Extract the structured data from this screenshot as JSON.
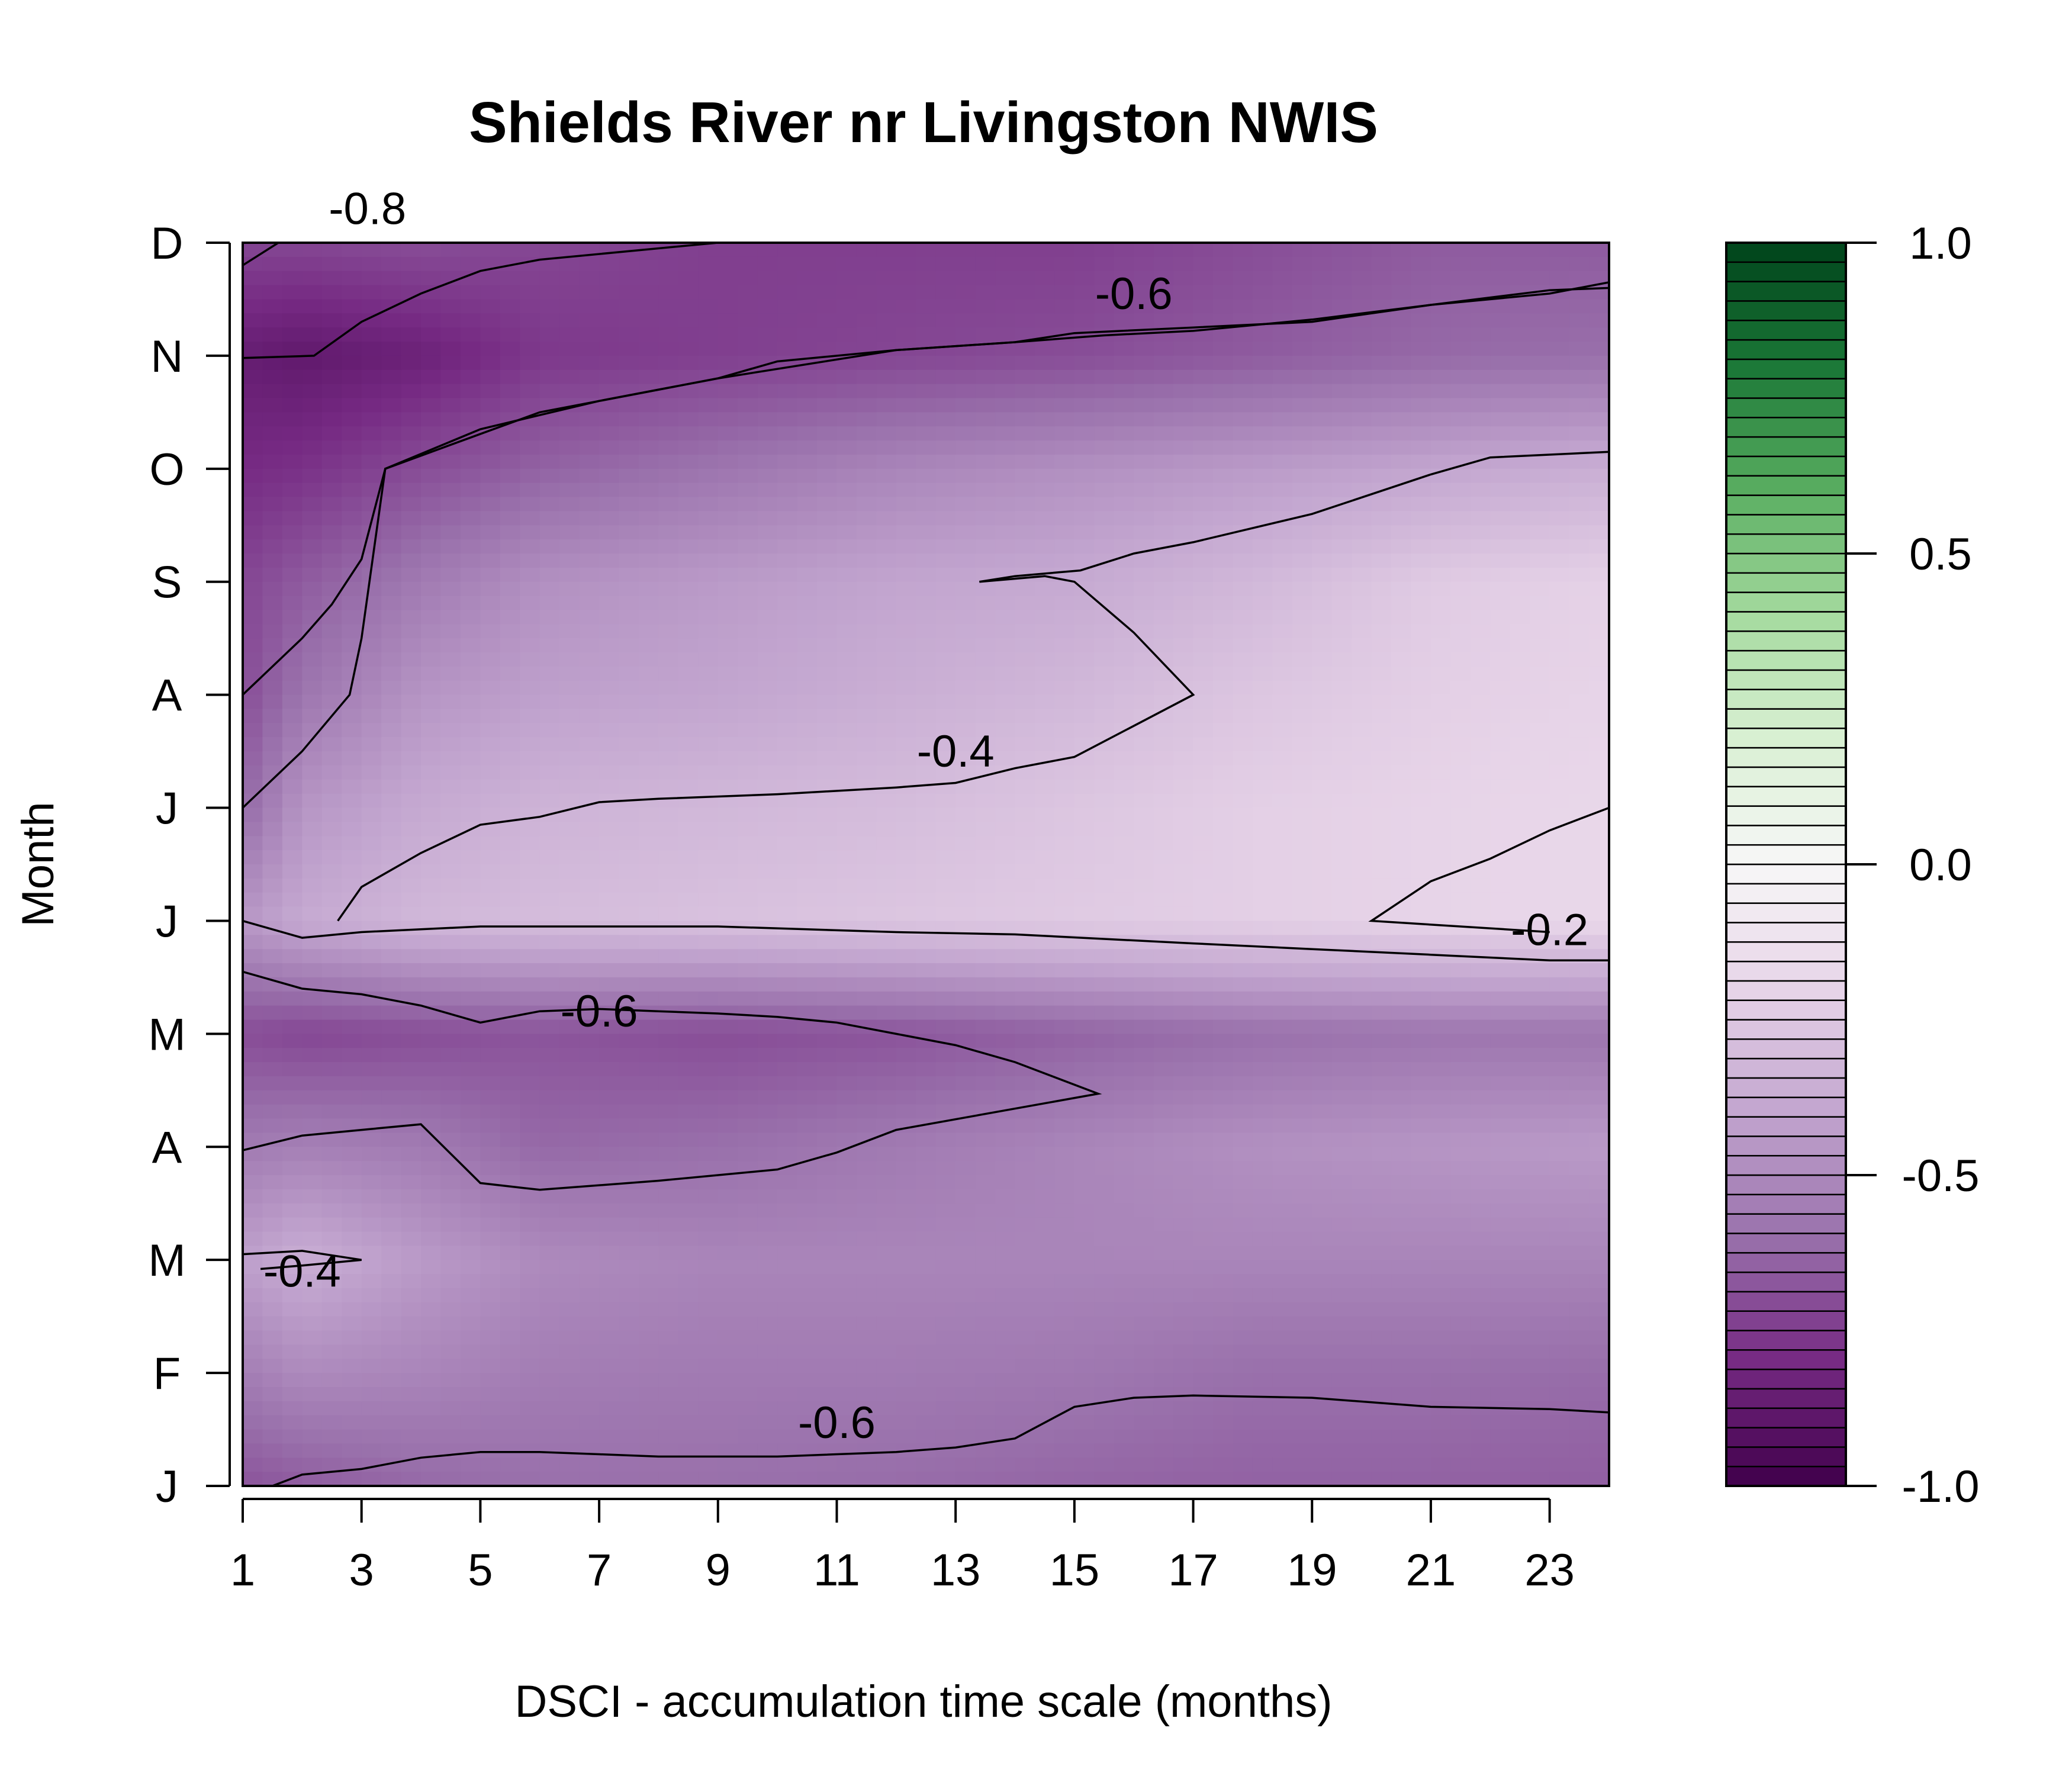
{
  "chart_data": {
    "type": "heatmap",
    "title": "Shields River nr Livingston NWIS",
    "xlabel": "DSCI - accumulation time scale (months)",
    "ylabel": "Month",
    "xlim": [
      1,
      24
    ],
    "x_ticks": [
      1,
      3,
      5,
      7,
      9,
      11,
      13,
      15,
      17,
      19,
      21,
      23
    ],
    "y_ticks": [
      "J",
      "F",
      "M",
      "A",
      "M",
      "J",
      "J",
      "A",
      "S",
      "O",
      "N",
      "D"
    ],
    "colorbar": {
      "range": [
        -1.0,
        1.0
      ],
      "tick_values": [
        1.0,
        0.5,
        0.0,
        -0.5,
        -1.0
      ],
      "tick_labels": [
        "1.0",
        "0.5",
        "0.0",
        "-0.5",
        "-1.0"
      ],
      "low_color": "#40004b",
      "mid_color": "#f7f7f7",
      "high_color": "#00441b"
    },
    "x": [
      1,
      2,
      4,
      6,
      9,
      12,
      15,
      18,
      21,
      24
    ],
    "rows": [
      {
        "month": "J",
        "values": [
          -0.68,
          -0.66,
          -0.62,
          -0.6,
          -0.6,
          -0.61,
          -0.63,
          -0.64,
          -0.64,
          -0.65
        ]
      },
      {
        "month": "F",
        "values": [
          -0.55,
          -0.5,
          -0.52,
          -0.55,
          -0.56,
          -0.56,
          -0.57,
          -0.6,
          -0.6,
          -0.61
        ]
      },
      {
        "month": "M",
        "values": [
          -0.42,
          -0.36,
          -0.44,
          -0.5,
          -0.52,
          -0.52,
          -0.52,
          -0.52,
          -0.52,
          -0.52
        ]
      },
      {
        "month": "A",
        "values": [
          -0.56,
          -0.54,
          -0.56,
          -0.62,
          -0.6,
          -0.56,
          -0.52,
          -0.48,
          -0.46,
          -0.44
        ]
      },
      {
        "month": "M",
        "values": [
          -0.7,
          -0.72,
          -0.7,
          -0.68,
          -0.7,
          -0.68,
          -0.64,
          -0.6,
          -0.58,
          -0.58
        ]
      },
      {
        "month": "J",
        "values": [
          -0.45,
          -0.38,
          -0.32,
          -0.3,
          -0.28,
          -0.26,
          -0.24,
          -0.22,
          -0.2,
          -0.18
        ]
      },
      {
        "month": "J",
        "values": [
          -0.62,
          -0.46,
          -0.38,
          -0.34,
          -0.32,
          -0.3,
          -0.26,
          -0.22,
          -0.2,
          -0.18
        ]
      },
      {
        "month": "A",
        "values": [
          -0.7,
          -0.58,
          -0.46,
          -0.42,
          -0.4,
          -0.36,
          -0.32,
          -0.26,
          -0.22,
          -0.2
        ]
      },
      {
        "month": "S",
        "values": [
          -0.72,
          -0.66,
          -0.56,
          -0.48,
          -0.44,
          -0.4,
          -0.38,
          -0.32,
          -0.24,
          -0.21
        ]
      },
      {
        "month": "O",
        "values": [
          -0.8,
          -0.78,
          -0.7,
          -0.64,
          -0.58,
          -0.52,
          -0.48,
          -0.44,
          -0.4,
          -0.36
        ]
      },
      {
        "month": "N",
        "values": [
          -0.86,
          -0.88,
          -0.84,
          -0.76,
          -0.74,
          -0.72,
          -0.7,
          -0.66,
          -0.62,
          -0.6
        ]
      },
      {
        "month": "D",
        "values": [
          -0.72,
          -0.72,
          -0.7,
          -0.72,
          -0.74,
          -0.74,
          -0.74,
          -0.7,
          -0.66,
          -0.66
        ]
      }
    ],
    "contours": [
      {
        "label": "-0.8",
        "points": [
          [
            1,
            10.8
          ],
          [
            2.5,
            11.3
          ],
          [
            4,
            11.3
          ],
          [
            6,
            11.2
          ],
          [
            7,
            11.2
          ],
          [
            8,
            11.15
          ],
          [
            9,
            11.0
          ],
          [
            6,
            10.85
          ],
          [
            5,
            10.75
          ],
          [
            4,
            10.55
          ],
          [
            3,
            10.3
          ],
          [
            2.2,
            10.0
          ],
          [
            1,
            9.98
          ]
        ]
      },
      {
        "label": "-0.6",
        "points": [
          [
            1,
            7.0
          ],
          [
            1.5,
            7.25
          ],
          [
            2,
            7.5
          ],
          [
            2.5,
            7.8
          ],
          [
            3,
            8.2
          ],
          [
            3.4,
            9.0
          ],
          [
            5,
            9.35
          ],
          [
            7,
            9.6
          ],
          [
            9,
            9.8
          ],
          [
            10,
            9.95
          ],
          [
            12,
            10.05
          ],
          [
            14,
            10.12
          ],
          [
            15.5,
            10.18
          ],
          [
            17,
            10.22
          ],
          [
            19,
            10.32
          ],
          [
            21,
            10.45
          ],
          [
            23,
            10.58
          ],
          [
            24,
            10.6
          ]
        ]
      },
      {
        "label": "-0.6",
        "points": [
          [
            1,
            4.55
          ],
          [
            2,
            4.4
          ],
          [
            3,
            4.35
          ],
          [
            4,
            4.25
          ],
          [
            5,
            4.1
          ],
          [
            6,
            4.2
          ],
          [
            7,
            4.22
          ],
          [
            8,
            4.2
          ],
          [
            9,
            4.18
          ],
          [
            10,
            4.15
          ],
          [
            11,
            4.1
          ],
          [
            12,
            4.0
          ],
          [
            13,
            3.9
          ],
          [
            14,
            3.75
          ],
          [
            15.4,
            3.47
          ],
          [
            12,
            3.15
          ],
          [
            11,
            2.95
          ],
          [
            10,
            2.8
          ],
          [
            8,
            2.7
          ],
          [
            6,
            2.62
          ],
          [
            5,
            2.68
          ],
          [
            4,
            3.2
          ],
          [
            3,
            3.15
          ],
          [
            2,
            3.1
          ],
          [
            1,
            2.97
          ]
        ]
      },
      {
        "label": "-0.6",
        "points": [
          [
            1.5,
            0
          ],
          [
            2,
            0.1
          ],
          [
            3,
            0.15
          ],
          [
            4,
            0.25
          ],
          [
            5,
            0.3
          ],
          [
            6,
            0.3
          ],
          [
            7,
            0.28
          ],
          [
            8,
            0.26
          ],
          [
            10,
            0.26
          ],
          [
            12,
            0.3
          ],
          [
            13,
            0.34
          ],
          [
            14,
            0.42
          ],
          [
            15,
            0.7
          ],
          [
            16,
            0.78
          ],
          [
            17,
            0.8
          ],
          [
            19,
            0.78
          ],
          [
            21,
            0.7
          ],
          [
            23,
            0.68
          ],
          [
            24,
            0.65
          ]
        ]
      },
      {
        "label": "-0.4",
        "points": [
          [
            1,
            6.0
          ],
          [
            2,
            6.5
          ],
          [
            2.8,
            7.0
          ],
          [
            3,
            7.5
          ],
          [
            3.4,
            9.0
          ],
          [
            6,
            9.5
          ],
          [
            9,
            9.8
          ],
          [
            12,
            10.05
          ],
          [
            14,
            10.12
          ],
          [
            15,
            10.2
          ],
          [
            17,
            10.25
          ],
          [
            19,
            10.3
          ],
          [
            21,
            10.45
          ],
          [
            23,
            10.55
          ],
          [
            24,
            10.65
          ]
        ]
      },
      {
        "label": "-0.4",
        "points": [
          [
            2.6,
            5.0
          ],
          [
            3,
            5.3
          ],
          [
            4,
            5.6
          ],
          [
            5,
            5.85
          ],
          [
            6,
            5.92
          ],
          [
            7,
            6.05
          ],
          [
            8,
            6.08
          ],
          [
            10,
            6.12
          ],
          [
            12,
            6.18
          ],
          [
            13,
            6.22
          ],
          [
            14,
            6.35
          ],
          [
            15,
            6.45
          ],
          [
            17,
            7.0
          ],
          [
            16,
            7.55
          ],
          [
            15,
            8.0
          ],
          [
            14.5,
            8.05
          ],
          [
            13.4,
            8.0
          ],
          [
            14,
            8.05
          ],
          [
            15.1,
            8.1
          ],
          [
            16,
            8.25
          ],
          [
            17,
            8.35
          ],
          [
            19,
            8.6
          ],
          [
            21,
            8.95
          ],
          [
            22,
            9.1
          ],
          [
            24,
            9.15
          ]
        ]
      },
      {
        "label": "-0.4",
        "points": [
          [
            1,
            2.05
          ],
          [
            2,
            2.08
          ],
          [
            3,
            2.0
          ],
          [
            2,
            1.95
          ],
          [
            1.3,
            1.92
          ]
        ]
      },
      {
        "label": "-0.2",
        "points": [
          [
            24,
            6.0
          ],
          [
            23,
            5.8
          ],
          [
            22,
            5.55
          ],
          [
            21,
            5.35
          ],
          [
            20,
            5.0
          ],
          [
            23,
            4.9
          ]
        ]
      },
      {
        "label": "",
        "points": [
          [
            1,
            5.0
          ],
          [
            2,
            4.85
          ],
          [
            3,
            4.9
          ],
          [
            5,
            4.95
          ],
          [
            7,
            4.95
          ],
          [
            9,
            4.95
          ],
          [
            12,
            4.9
          ],
          [
            14,
            4.88
          ],
          [
            17,
            4.8
          ],
          [
            19,
            4.75
          ],
          [
            21,
            4.7
          ],
          [
            23,
            4.65
          ],
          [
            24,
            4.65
          ]
        ]
      }
    ],
    "contour_labels": [
      {
        "text": "-0.8",
        "x": 3.1,
        "y": 11.3
      },
      {
        "text": "-0.6",
        "x": 16.0,
        "y": 10.55
      },
      {
        "text": "-0.4",
        "x": 13.0,
        "y": 6.5
      },
      {
        "text": "-0.2",
        "x": 23.0,
        "y": 4.92
      },
      {
        "text": "-0.6",
        "x": 7.0,
        "y": 4.2
      },
      {
        "text": "-0.4",
        "x": 2.0,
        "y": 1.9
      },
      {
        "text": "-0.6",
        "x": 11.0,
        "y": 0.56
      }
    ]
  }
}
